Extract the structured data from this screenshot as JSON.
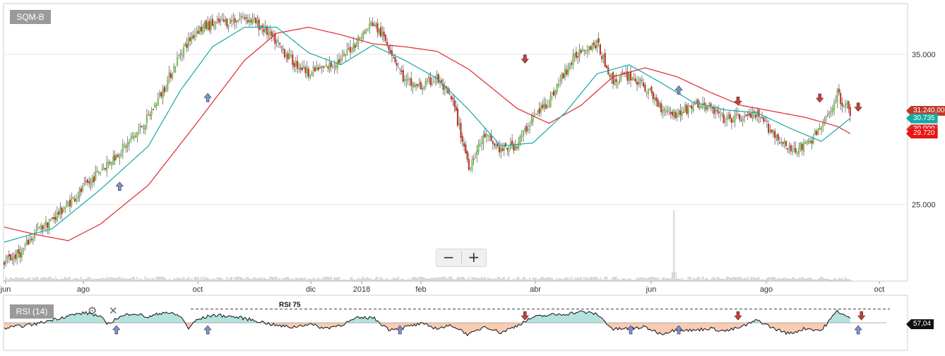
{
  "chart": {
    "ticker": "SQM-B",
    "indicator_label": "RSI (14)",
    "rsi_level_label": "RSI 75",
    "zoom_minus": "−",
    "zoom_plus": "+",
    "gear_icon": "gear-icon",
    "close_icon": "close-icon"
  },
  "chart_data": [
    {
      "type": "candlestick",
      "title": "",
      "ylim": [
        20000,
        38000
      ],
      "y_ticks": [
        {
          "value": 35000,
          "label": "35.000"
        },
        {
          "value": 25000,
          "label": "25.000"
        }
      ],
      "x_ticks": [
        "jun",
        "ago",
        "oct",
        "dic",
        "2018",
        "feb",
        "abr",
        "jun",
        "ago",
        "oct"
      ],
      "last_price": {
        "value": 31240,
        "label": "31.240,00"
      },
      "ma_fast_last": {
        "value": 30735,
        "label": "30.735"
      },
      "ma_slow_last": {
        "value": 29720,
        "label": "29.720"
      },
      "ma_hidden_label": "30.000",
      "close_anchors": [
        [
          0,
          21200
        ],
        [
          10,
          21800
        ],
        [
          20,
          23200
        ],
        [
          30,
          24000
        ],
        [
          40,
          25100
        ],
        [
          50,
          26100
        ],
        [
          60,
          27300
        ],
        [
          70,
          28300
        ],
        [
          80,
          29400
        ],
        [
          90,
          30800
        ],
        [
          100,
          32800
        ],
        [
          110,
          35100
        ],
        [
          120,
          36600
        ],
        [
          130,
          37000
        ],
        [
          140,
          37200
        ],
        [
          150,
          37500
        ],
        [
          160,
          36900
        ],
        [
          170,
          35800
        ],
        [
          180,
          34500
        ],
        [
          190,
          33800
        ],
        [
          200,
          34100
        ],
        [
          210,
          34600
        ],
        [
          220,
          35900
        ],
        [
          230,
          37100
        ],
        [
          240,
          35600
        ],
        [
          250,
          33200
        ],
        [
          260,
          32800
        ],
        [
          270,
          33400
        ],
        [
          280,
          31800
        ],
        [
          290,
          27600
        ],
        [
          300,
          29600
        ],
        [
          310,
          28600
        ],
        [
          320,
          29000
        ],
        [
          330,
          30800
        ],
        [
          340,
          31900
        ],
        [
          350,
          33800
        ],
        [
          360,
          35400
        ],
        [
          370,
          35700
        ],
        [
          380,
          33200
        ],
        [
          390,
          33600
        ],
        [
          400,
          32800
        ],
        [
          410,
          31500
        ],
        [
          420,
          31000
        ],
        [
          430,
          31600
        ],
        [
          440,
          31500
        ],
        [
          450,
          30600
        ],
        [
          460,
          30800
        ],
        [
          470,
          30900
        ],
        [
          480,
          29800
        ],
        [
          490,
          28600
        ],
        [
          500,
          28900
        ],
        [
          510,
          30100
        ],
        [
          520,
          32300
        ],
        [
          528,
          31240
        ]
      ],
      "ma_fast_anchors": [
        [
          0,
          22500
        ],
        [
          30,
          23400
        ],
        [
          60,
          26000
        ],
        [
          90,
          28900
        ],
        [
          110,
          32600
        ],
        [
          130,
          35500
        ],
        [
          150,
          36800
        ],
        [
          170,
          36800
        ],
        [
          190,
          35100
        ],
        [
          210,
          34300
        ],
        [
          230,
          35600
        ],
        [
          250,
          34600
        ],
        [
          270,
          33400
        ],
        [
          290,
          31300
        ],
        [
          310,
          28900
        ],
        [
          330,
          29100
        ],
        [
          350,
          31100
        ],
        [
          370,
          33700
        ],
        [
          390,
          34300
        ],
        [
          410,
          33100
        ],
        [
          430,
          31800
        ],
        [
          450,
          31300
        ],
        [
          470,
          31100
        ],
        [
          490,
          30100
        ],
        [
          510,
          29200
        ],
        [
          528,
          30735
        ]
      ],
      "ma_slow_anchors": [
        [
          0,
          23500
        ],
        [
          20,
          23000
        ],
        [
          40,
          22600
        ],
        [
          60,
          23700
        ],
        [
          90,
          26300
        ],
        [
          120,
          30400
        ],
        [
          150,
          34600
        ],
        [
          170,
          36400
        ],
        [
          190,
          36800
        ],
        [
          210,
          36300
        ],
        [
          230,
          35700
        ],
        [
          250,
          35500
        ],
        [
          270,
          35200
        ],
        [
          290,
          34000
        ],
        [
          320,
          31400
        ],
        [
          340,
          30400
        ],
        [
          360,
          31600
        ],
        [
          380,
          33500
        ],
        [
          400,
          34100
        ],
        [
          420,
          33500
        ],
        [
          440,
          32500
        ],
        [
          460,
          31600
        ],
        [
          480,
          31200
        ],
        [
          500,
          30800
        ],
        [
          520,
          30200
        ],
        [
          528,
          29720
        ]
      ],
      "volume_spike_index": 418
    },
    {
      "type": "area",
      "name": "RSI (14)",
      "ylim": [
        0,
        100
      ],
      "threshold": 75,
      "midline": 50,
      "last_value": {
        "value": 57.04,
        "label": "57,04"
      },
      "rsi_anchors": [
        [
          0,
          40
        ],
        [
          20,
          48
        ],
        [
          40,
          63
        ],
        [
          50,
          68
        ],
        [
          55,
          66
        ],
        [
          60,
          60
        ],
        [
          65,
          48
        ],
        [
          70,
          58
        ],
        [
          80,
          68
        ],
        [
          90,
          60
        ],
        [
          100,
          70
        ],
        [
          110,
          62
        ],
        [
          115,
          40
        ],
        [
          120,
          55
        ],
        [
          130,
          64
        ],
        [
          140,
          62
        ],
        [
          150,
          58
        ],
        [
          160,
          52
        ],
        [
          170,
          45
        ],
        [
          180,
          42
        ],
        [
          190,
          48
        ],
        [
          200,
          40
        ],
        [
          210,
          46
        ],
        [
          220,
          58
        ],
        [
          230,
          60
        ],
        [
          240,
          38
        ],
        [
          250,
          42
        ],
        [
          260,
          48
        ],
        [
          270,
          40
        ],
        [
          280,
          45
        ],
        [
          290,
          28
        ],
        [
          300,
          44
        ],
        [
          310,
          32
        ],
        [
          320,
          45
        ],
        [
          330,
          60
        ],
        [
          340,
          64
        ],
        [
          350,
          66
        ],
        [
          360,
          70
        ],
        [
          370,
          66
        ],
        [
          380,
          38
        ],
        [
          390,
          40
        ],
        [
          400,
          42
        ],
        [
          410,
          30
        ],
        [
          420,
          38
        ],
        [
          430,
          36
        ],
        [
          440,
          40
        ],
        [
          450,
          35
        ],
        [
          460,
          42
        ],
        [
          470,
          55
        ],
        [
          480,
          40
        ],
        [
          490,
          30
        ],
        [
          500,
          40
        ],
        [
          510,
          36
        ],
        [
          520,
          72
        ],
        [
          528,
          57
        ]
      ]
    }
  ],
  "signals": {
    "buy_price": [
      {
        "index": 72,
        "price": 26500
      },
      {
        "index": 127,
        "price": 32400
      },
      {
        "index": 421,
        "price": 32900
      }
    ],
    "sell_price": [
      {
        "index": 325,
        "price": 34400
      },
      {
        "index": 458,
        "price": 31600
      },
      {
        "index": 509,
        "price": 31800
      },
      {
        "index": 533,
        "price": 31200
      }
    ],
    "buy_rsi": [
      70,
      127,
      247,
      391,
      421,
      533
    ],
    "sell_rsi": [
      325,
      458,
      535
    ]
  },
  "colors": {
    "up": "#7fbf5b",
    "down": "#c0392b",
    "ma_fast": "#17a9a2",
    "ma_slow": "#e0282e",
    "rsi_high": "#b4e2df",
    "rsi_low": "#f8ccb3",
    "buy_arrow": "#7b93d6",
    "sell_arrow": "#d23b2f",
    "grid": "#e6e6e6"
  }
}
